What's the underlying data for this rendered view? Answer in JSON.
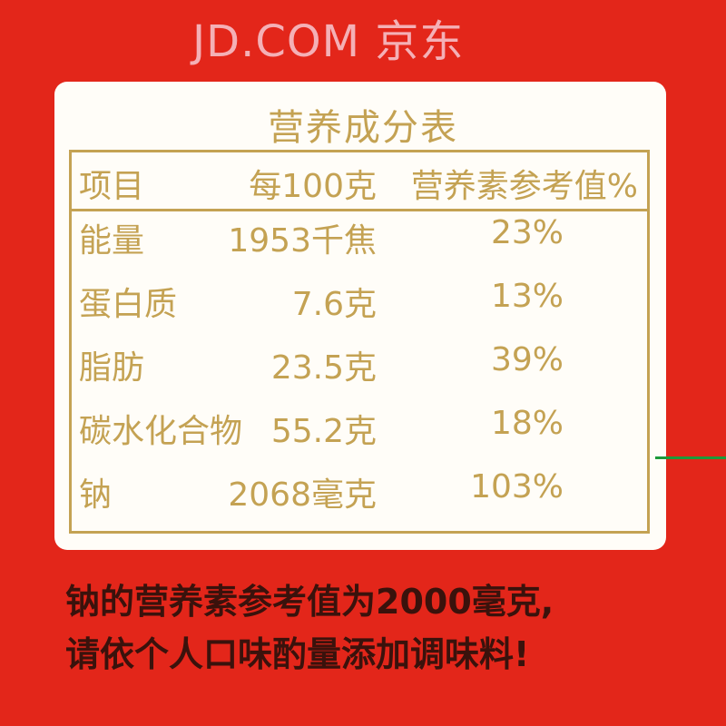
{
  "title": "营养成分表",
  "headers": [
    "项目",
    "每100克",
    "营养素参考值%"
  ],
  "rows": [
    {
      "item": "能量",
      "per100g": "1953千焦",
      "nrv": "23%"
    },
    {
      "item": "蛋白质",
      "per100g": "7.6克",
      "nrv": "13%"
    },
    {
      "item": "脂肪",
      "per100g": "23.5克",
      "nrv": "39%"
    },
    {
      "item": "碳水化合物",
      "per100g": "55.2克",
      "nrv": "18%"
    },
    {
      "item": "钠",
      "per100g": "2068毫克",
      "nrv": "103%"
    }
  ],
  "watermark": "JD.COM 京东",
  "notes": [
    "钠的营养素参考值为2000毫克,",
    "请依个人口味酌量添加调味料!"
  ],
  "colors": {
    "background": "#e3261a",
    "text_gold": "#c4a253",
    "note_text": "#3a120c"
  }
}
